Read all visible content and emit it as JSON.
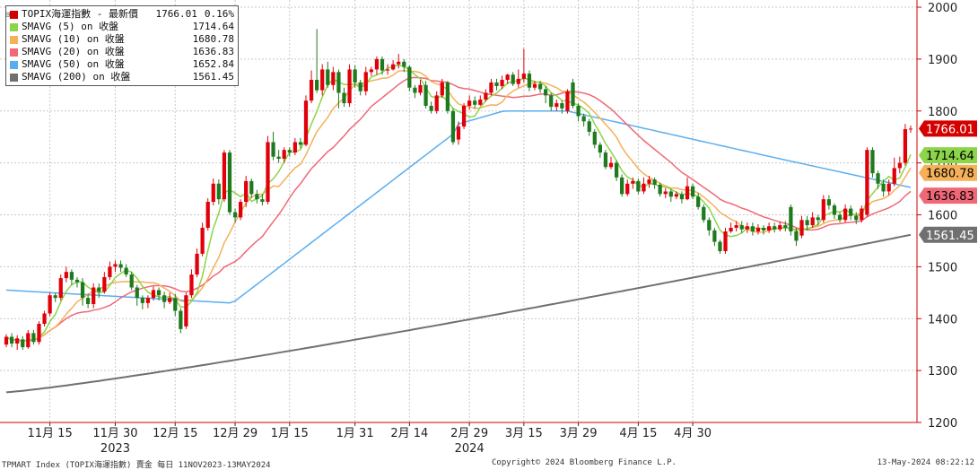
{
  "chart_data": {
    "type": "candlestick",
    "title": "TOPIX海運指数 - 最新價",
    "last_change": "0.16%",
    "ylim": [
      1200,
      2000
    ],
    "yticks": [
      1200,
      1300,
      1400,
      1500,
      1600,
      1700,
      1800,
      1900,
      2000
    ],
    "grid": true,
    "legend_position": "top-left",
    "x_tick_labels": [
      "11月 15",
      "11月 30",
      "12月 15",
      "12月 29",
      "1月 15",
      "1月 31",
      "2月 14",
      "2月 29",
      "3月 15",
      "3月 29",
      "4月 15",
      "4月 30"
    ],
    "x_tick_index": [
      8,
      20,
      31,
      42,
      52,
      64,
      74,
      85,
      95,
      105,
      116,
      126
    ],
    "year_labels": [
      {
        "text": "2023",
        "index": 20
      },
      {
        "text": "2024",
        "index": 85
      }
    ],
    "last_labels": [
      {
        "text": "1766.01",
        "value": 1766.01,
        "color": "#d40000"
      },
      {
        "text": "1714.64",
        "value": 1714.64,
        "color": "#8cd54a"
      },
      {
        "text": "1680.78",
        "value": 1680.78,
        "color": "#f5b05a"
      },
      {
        "text": "1636.83",
        "value": 1636.83,
        "color": "#f06877"
      },
      {
        "text": "1561.45",
        "value": 1561.45,
        "color": "#707070"
      }
    ],
    "legend": [
      {
        "name": "TOPIX海運指數 - 最新價",
        "value": "1766.01",
        "change": "0.16%",
        "color": "#d40000"
      },
      {
        "name": "SMAVG (5)  on 收盤",
        "value": "1714.64",
        "color": "#8cd54a"
      },
      {
        "name": "SMAVG (10)  on 收盤",
        "value": "1680.78",
        "color": "#f5b05a"
      },
      {
        "name": "SMAVG (20)  on 收盤",
        "value": "1636.83",
        "color": "#f06877"
      },
      {
        "name": "SMAVG (50)  on 收盤",
        "value": "1652.84",
        "color": "#5aaeef"
      },
      {
        "name": "SMAVG (200)  on 收盤",
        "value": "1561.45",
        "color": "#707070"
      }
    ],
    "candles": [
      {
        "o": 1350,
        "c": 1365,
        "h": 1370,
        "l": 1345
      },
      {
        "o": 1365,
        "c": 1352,
        "h": 1372,
        "l": 1345
      },
      {
        "o": 1352,
        "c": 1362,
        "h": 1368,
        "l": 1340
      },
      {
        "o": 1360,
        "c": 1345,
        "h": 1366,
        "l": 1340
      },
      {
        "o": 1345,
        "c": 1372,
        "h": 1378,
        "l": 1342
      },
      {
        "o": 1372,
        "c": 1355,
        "h": 1378,
        "l": 1350
      },
      {
        "o": 1355,
        "c": 1390,
        "h": 1395,
        "l": 1350
      },
      {
        "o": 1390,
        "c": 1410,
        "h": 1415,
        "l": 1385
      },
      {
        "o": 1410,
        "c": 1445,
        "h": 1450,
        "l": 1405
      },
      {
        "o": 1445,
        "c": 1440,
        "h": 1450,
        "l": 1432
      },
      {
        "o": 1440,
        "c": 1478,
        "h": 1485,
        "l": 1435
      },
      {
        "o": 1478,
        "c": 1490,
        "h": 1500,
        "l": 1470
      },
      {
        "o": 1490,
        "c": 1475,
        "h": 1495,
        "l": 1465
      },
      {
        "o": 1475,
        "c": 1470,
        "h": 1480,
        "l": 1460
      },
      {
        "o": 1470,
        "c": 1440,
        "h": 1478,
        "l": 1425
      },
      {
        "o": 1440,
        "c": 1428,
        "h": 1448,
        "l": 1420
      },
      {
        "o": 1428,
        "c": 1460,
        "h": 1468,
        "l": 1420
      },
      {
        "o": 1460,
        "c": 1452,
        "h": 1468,
        "l": 1440
      },
      {
        "o": 1452,
        "c": 1480,
        "h": 1490,
        "l": 1448
      },
      {
        "o": 1480,
        "c": 1500,
        "h": 1510,
        "l": 1475
      },
      {
        "o": 1500,
        "c": 1505,
        "h": 1512,
        "l": 1490
      },
      {
        "o": 1505,
        "c": 1498,
        "h": 1512,
        "l": 1490
      },
      {
        "o": 1498,
        "c": 1485,
        "h": 1505,
        "l": 1480
      },
      {
        "o": 1485,
        "c": 1460,
        "h": 1490,
        "l": 1455
      },
      {
        "o": 1460,
        "c": 1440,
        "h": 1465,
        "l": 1425
      },
      {
        "o": 1440,
        "c": 1430,
        "h": 1445,
        "l": 1418
      },
      {
        "o": 1430,
        "c": 1440,
        "h": 1445,
        "l": 1420
      },
      {
        "o": 1440,
        "c": 1455,
        "h": 1462,
        "l": 1435
      },
      {
        "o": 1455,
        "c": 1445,
        "h": 1460,
        "l": 1435
      },
      {
        "o": 1445,
        "c": 1432,
        "h": 1452,
        "l": 1420
      },
      {
        "o": 1432,
        "c": 1440,
        "h": 1450,
        "l": 1428
      },
      {
        "o": 1440,
        "c": 1415,
        "h": 1448,
        "l": 1405
      },
      {
        "o": 1415,
        "c": 1380,
        "h": 1420,
        "l": 1372
      },
      {
        "o": 1385,
        "c": 1445,
        "h": 1450,
        "l": 1380
      },
      {
        "o": 1445,
        "c": 1485,
        "h": 1495,
        "l": 1440
      },
      {
        "o": 1485,
        "c": 1525,
        "h": 1535,
        "l": 1480
      },
      {
        "o": 1525,
        "c": 1575,
        "h": 1585,
        "l": 1520
      },
      {
        "o": 1575,
        "c": 1625,
        "h": 1632,
        "l": 1570
      },
      {
        "o": 1625,
        "c": 1660,
        "h": 1670,
        "l": 1618
      },
      {
        "o": 1660,
        "c": 1630,
        "h": 1668,
        "l": 1620
      },
      {
        "o": 1630,
        "c": 1720,
        "h": 1725,
        "l": 1625
      },
      {
        "o": 1720,
        "c": 1605,
        "h": 1725,
        "l": 1600
      },
      {
        "o": 1605,
        "c": 1595,
        "h": 1612,
        "l": 1585
      },
      {
        "o": 1595,
        "c": 1625,
        "h": 1630,
        "l": 1590
      },
      {
        "o": 1625,
        "c": 1665,
        "h": 1675,
        "l": 1615
      },
      {
        "o": 1665,
        "c": 1640,
        "h": 1670,
        "l": 1632
      },
      {
        "o": 1640,
        "c": 1630,
        "h": 1648,
        "l": 1622
      },
      {
        "o": 1630,
        "c": 1625,
        "h": 1640,
        "l": 1618
      },
      {
        "o": 1625,
        "c": 1740,
        "h": 1752,
        "l": 1620
      },
      {
        "o": 1740,
        "c": 1712,
        "h": 1760,
        "l": 1705
      },
      {
        "o": 1712,
        "c": 1708,
        "h": 1725,
        "l": 1700
      },
      {
        "o": 1708,
        "c": 1725,
        "h": 1730,
        "l": 1700
      },
      {
        "o": 1725,
        "c": 1720,
        "h": 1730,
        "l": 1712
      },
      {
        "o": 1720,
        "c": 1740,
        "h": 1748,
        "l": 1715
      },
      {
        "o": 1740,
        "c": 1735,
        "h": 1748,
        "l": 1728
      },
      {
        "o": 1735,
        "c": 1820,
        "h": 1830,
        "l": 1732
      },
      {
        "o": 1820,
        "c": 1860,
        "h": 1878,
        "l": 1815
      },
      {
        "o": 1860,
        "c": 1840,
        "h": 1958,
        "l": 1835
      },
      {
        "o": 1840,
        "c": 1880,
        "h": 1890,
        "l": 1830
      },
      {
        "o": 1880,
        "c": 1850,
        "h": 1895,
        "l": 1845
      },
      {
        "o": 1850,
        "c": 1875,
        "h": 1885,
        "l": 1840
      },
      {
        "o": 1875,
        "c": 1835,
        "h": 1880,
        "l": 1805
      },
      {
        "o": 1835,
        "c": 1815,
        "h": 1845,
        "l": 1808
      },
      {
        "o": 1815,
        "c": 1880,
        "h": 1890,
        "l": 1808
      },
      {
        "o": 1880,
        "c": 1855,
        "h": 1888,
        "l": 1845
      },
      {
        "o": 1855,
        "c": 1838,
        "h": 1860,
        "l": 1830
      },
      {
        "o": 1838,
        "c": 1875,
        "h": 1885,
        "l": 1830
      },
      {
        "o": 1875,
        "c": 1880,
        "h": 1885,
        "l": 1868
      },
      {
        "o": 1880,
        "c": 1900,
        "h": 1905,
        "l": 1870
      },
      {
        "o": 1900,
        "c": 1878,
        "h": 1905,
        "l": 1870
      },
      {
        "o": 1878,
        "c": 1880,
        "h": 1890,
        "l": 1870
      },
      {
        "o": 1880,
        "c": 1890,
        "h": 1898,
        "l": 1878
      },
      {
        "o": 1890,
        "c": 1895,
        "h": 1910,
        "l": 1882
      },
      {
        "o": 1895,
        "c": 1885,
        "h": 1900,
        "l": 1875
      },
      {
        "o": 1885,
        "c": 1845,
        "h": 1888,
        "l": 1838
      },
      {
        "o": 1845,
        "c": 1835,
        "h": 1850,
        "l": 1825
      },
      {
        "o": 1835,
        "c": 1850,
        "h": 1860,
        "l": 1830
      },
      {
        "o": 1850,
        "c": 1810,
        "h": 1858,
        "l": 1805
      },
      {
        "o": 1810,
        "c": 1800,
        "h": 1818,
        "l": 1795
      },
      {
        "o": 1800,
        "c": 1830,
        "h": 1838,
        "l": 1795
      },
      {
        "o": 1830,
        "c": 1855,
        "h": 1862,
        "l": 1825
      },
      {
        "o": 1855,
        "c": 1800,
        "h": 1858,
        "l": 1795
      },
      {
        "o": 1800,
        "c": 1740,
        "h": 1805,
        "l": 1735
      },
      {
        "o": 1745,
        "c": 1770,
        "h": 1780,
        "l": 1735
      },
      {
        "o": 1770,
        "c": 1810,
        "h": 1815,
        "l": 1765
      },
      {
        "o": 1810,
        "c": 1820,
        "h": 1830,
        "l": 1802
      },
      {
        "o": 1820,
        "c": 1812,
        "h": 1828,
        "l": 1805
      },
      {
        "o": 1812,
        "c": 1822,
        "h": 1830,
        "l": 1810
      },
      {
        "o": 1822,
        "c": 1835,
        "h": 1842,
        "l": 1818
      },
      {
        "o": 1835,
        "c": 1855,
        "h": 1862,
        "l": 1830
      },
      {
        "o": 1855,
        "c": 1848,
        "h": 1862,
        "l": 1840
      },
      {
        "o": 1848,
        "c": 1860,
        "h": 1868,
        "l": 1842
      },
      {
        "o": 1860,
        "c": 1870,
        "h": 1872,
        "l": 1852
      },
      {
        "o": 1870,
        "c": 1852,
        "h": 1875,
        "l": 1848
      },
      {
        "o": 1852,
        "c": 1862,
        "h": 1880,
        "l": 1845
      },
      {
        "o": 1862,
        "c": 1872,
        "h": 1920,
        "l": 1855
      },
      {
        "o": 1872,
        "c": 1845,
        "h": 1878,
        "l": 1838
      },
      {
        "o": 1845,
        "c": 1852,
        "h": 1858,
        "l": 1840
      },
      {
        "o": 1852,
        "c": 1842,
        "h": 1858,
        "l": 1835
      },
      {
        "o": 1842,
        "c": 1830,
        "h": 1848,
        "l": 1815
      },
      {
        "o": 1830,
        "c": 1808,
        "h": 1835,
        "l": 1800
      },
      {
        "o": 1808,
        "c": 1815,
        "h": 1822,
        "l": 1800
      },
      {
        "o": 1815,
        "c": 1805,
        "h": 1820,
        "l": 1795
      },
      {
        "o": 1800,
        "c": 1838,
        "h": 1842,
        "l": 1795
      },
      {
        "o": 1855,
        "c": 1810,
        "h": 1862,
        "l": 1805
      },
      {
        "o": 1810,
        "c": 1790,
        "h": 1815,
        "l": 1780
      },
      {
        "o": 1790,
        "c": 1780,
        "h": 1795,
        "l": 1770
      },
      {
        "o": 1780,
        "c": 1760,
        "h": 1785,
        "l": 1752
      },
      {
        "o": 1760,
        "c": 1735,
        "h": 1765,
        "l": 1728
      },
      {
        "o": 1735,
        "c": 1720,
        "h": 1740,
        "l": 1710
      },
      {
        "o": 1720,
        "c": 1692,
        "h": 1725,
        "l": 1688
      },
      {
        "o": 1692,
        "c": 1700,
        "h": 1712,
        "l": 1688
      },
      {
        "o": 1700,
        "c": 1672,
        "h": 1705,
        "l": 1665
      },
      {
        "o": 1672,
        "c": 1640,
        "h": 1678,
        "l": 1635
      },
      {
        "o": 1640,
        "c": 1660,
        "h": 1668,
        "l": 1636
      },
      {
        "o": 1660,
        "c": 1665,
        "h": 1672,
        "l": 1650
      },
      {
        "o": 1665,
        "c": 1645,
        "h": 1670,
        "l": 1640
      },
      {
        "o": 1645,
        "c": 1660,
        "h": 1672,
        "l": 1640
      },
      {
        "o": 1660,
        "c": 1668,
        "h": 1675,
        "l": 1652
      },
      {
        "o": 1668,
        "c": 1658,
        "h": 1672,
        "l": 1650
      },
      {
        "o": 1658,
        "c": 1640,
        "h": 1662,
        "l": 1635
      },
      {
        "o": 1640,
        "c": 1645,
        "h": 1652,
        "l": 1632
      },
      {
        "o": 1645,
        "c": 1635,
        "h": 1650,
        "l": 1625
      },
      {
        "o": 1635,
        "c": 1640,
        "h": 1645,
        "l": 1630
      },
      {
        "o": 1640,
        "c": 1630,
        "h": 1645,
        "l": 1622
      },
      {
        "o": 1630,
        "c": 1655,
        "h": 1672,
        "l": 1628
      },
      {
        "o": 1655,
        "c": 1635,
        "h": 1660,
        "l": 1630
      },
      {
        "o": 1635,
        "c": 1615,
        "h": 1642,
        "l": 1610
      },
      {
        "o": 1615,
        "c": 1590,
        "h": 1620,
        "l": 1585
      },
      {
        "o": 1590,
        "c": 1570,
        "h": 1595,
        "l": 1560
      },
      {
        "o": 1570,
        "c": 1548,
        "h": 1575,
        "l": 1540
      },
      {
        "o": 1548,
        "c": 1530,
        "h": 1552,
        "l": 1525
      },
      {
        "o": 1530,
        "c": 1568,
        "h": 1575,
        "l": 1525
      },
      {
        "o": 1568,
        "c": 1575,
        "h": 1585,
        "l": 1565
      },
      {
        "o": 1575,
        "c": 1580,
        "h": 1588,
        "l": 1568
      },
      {
        "o": 1580,
        "c": 1572,
        "h": 1588,
        "l": 1565
      },
      {
        "o": 1572,
        "c": 1578,
        "h": 1585,
        "l": 1565
      },
      {
        "o": 1578,
        "c": 1568,
        "h": 1585,
        "l": 1560
      },
      {
        "o": 1568,
        "c": 1575,
        "h": 1582,
        "l": 1562
      },
      {
        "o": 1575,
        "c": 1570,
        "h": 1580,
        "l": 1562
      },
      {
        "o": 1570,
        "c": 1578,
        "h": 1585,
        "l": 1565
      },
      {
        "o": 1578,
        "c": 1572,
        "h": 1585,
        "l": 1566
      },
      {
        "o": 1572,
        "c": 1580,
        "h": 1586,
        "l": 1568
      },
      {
        "o": 1580,
        "c": 1575,
        "h": 1588,
        "l": 1568
      },
      {
        "o": 1615,
        "c": 1568,
        "h": 1620,
        "l": 1560
      },
      {
        "o": 1568,
        "c": 1550,
        "h": 1575,
        "l": 1540
      },
      {
        "o": 1560,
        "c": 1590,
        "h": 1598,
        "l": 1555
      },
      {
        "o": 1590,
        "c": 1580,
        "h": 1598,
        "l": 1570
      },
      {
        "o": 1580,
        "c": 1595,
        "h": 1605,
        "l": 1575
      },
      {
        "o": 1595,
        "c": 1590,
        "h": 1600,
        "l": 1580
      },
      {
        "o": 1590,
        "c": 1630,
        "h": 1638,
        "l": 1585
      },
      {
        "o": 1630,
        "c": 1618,
        "h": 1638,
        "l": 1610
      },
      {
        "o": 1618,
        "c": 1600,
        "h": 1622,
        "l": 1592
      },
      {
        "o": 1600,
        "c": 1590,
        "h": 1605,
        "l": 1585
      },
      {
        "o": 1590,
        "c": 1612,
        "h": 1620,
        "l": 1585
      },
      {
        "o": 1612,
        "c": 1598,
        "h": 1618,
        "l": 1590
      },
      {
        "o": 1598,
        "c": 1590,
        "h": 1605,
        "l": 1582
      },
      {
        "o": 1590,
        "c": 1612,
        "h": 1618,
        "l": 1585
      },
      {
        "o": 1600,
        "c": 1725,
        "h": 1730,
        "l": 1596
      },
      {
        "o": 1725,
        "c": 1680,
        "h": 1730,
        "l": 1672
      },
      {
        "o": 1680,
        "c": 1660,
        "h": 1685,
        "l": 1650
      },
      {
        "o": 1660,
        "c": 1645,
        "h": 1668,
        "l": 1635
      },
      {
        "o": 1645,
        "c": 1660,
        "h": 1668,
        "l": 1638
      },
      {
        "o": 1660,
        "c": 1690,
        "h": 1710,
        "l": 1655
      },
      {
        "o": 1690,
        "c": 1700,
        "h": 1712,
        "l": 1680
      },
      {
        "o": 1700,
        "c": 1765,
        "h": 1775,
        "l": 1695
      },
      {
        "o": 1765,
        "c": 1766,
        "h": 1772,
        "l": 1758
      }
    ]
  },
  "footer": {
    "left": "TPMART Index (TOPIX海運指數) 賣金  每日 11NOV2023-13MAY2024",
    "center": "Copyright© 2024 Bloomberg Finance L.P.",
    "right": "13-May-2024 08:22:12"
  },
  "colors": {
    "up": "#e0000a",
    "down": "#1f7a1f",
    "grid": "#c8c8c8",
    "axis": "#d40000",
    "ma5": "#8cd54a",
    "ma10": "#f5b05a",
    "ma20": "#f06877",
    "ma50": "#5aaeef",
    "ma200": "#707070"
  }
}
